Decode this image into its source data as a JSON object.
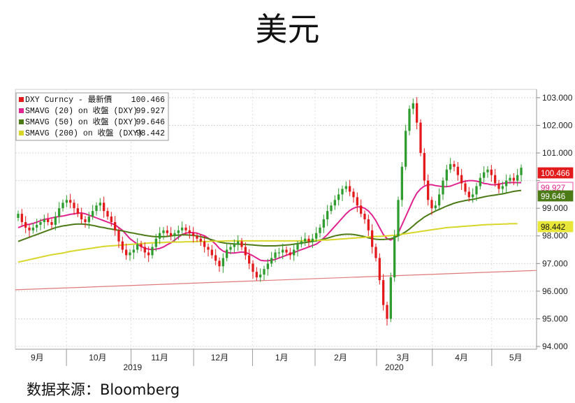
{
  "page": {
    "title": "美元",
    "source": "数据来源：Bloomberg"
  },
  "chart_data": {
    "type": "line",
    "title": "美元",
    "x_axis": {
      "month_labels": [
        "9月",
        "10月",
        "11月",
        "12月",
        "1月",
        "2月",
        "3月",
        "4月",
        "5月"
      ],
      "year_labels": [
        "2019",
        "2020"
      ]
    },
    "y_axis": {
      "side": "right",
      "ylim": [
        93.9,
        103.3
      ],
      "ticks": [
        94.0,
        95.0,
        96.0,
        97.0,
        98.0,
        99.0,
        100.0,
        101.0,
        102.0,
        103.0
      ],
      "tick_labels": [
        "94.000",
        "95.000",
        "96.000",
        "97.000",
        "98.000",
        "99.000",
        "101.000",
        "102.000",
        "103.000"
      ]
    },
    "grid": true,
    "legend_position": "top-left",
    "legend": [
      {
        "label": "DXY Curncy - 最新價",
        "value": "100.466",
        "color": "#e31a1c"
      },
      {
        "label": "SMAVG (20)  on 收盤 (DXY)",
        "value": "99.927",
        "color": "#e0238f"
      },
      {
        "label": "SMAVG (50)  on 收盤 (DXY)",
        "value": "99.646",
        "color": "#4c7a16"
      },
      {
        "label": "SMAVG (200)  on 收盤 (DXY)",
        "value": "98.442",
        "color": "#d9d62a"
      }
    ],
    "last_value_tags": [
      {
        "text": "100.466",
        "value": 100.466,
        "bg": "#e31a1c",
        "fg": "#ffffff"
      },
      {
        "text": "99.927",
        "value": 99.927,
        "bg": "#ffffff",
        "fg": "#e0238f"
      },
      {
        "text": "99.646",
        "value": 99.646,
        "bg": "#4c7a16",
        "fg": "#ffffff"
      },
      {
        "text": "98.442",
        "value": 98.442,
        "bg": "#e9e63a",
        "fg": "#111111"
      }
    ],
    "candles": {
      "up_color": "#2e9c2e",
      "down_color": "#e31a1c",
      "closes": [
        98.8,
        98.5,
        98.3,
        98.2,
        98.3,
        98.4,
        98.5,
        98.6,
        98.5,
        98.4,
        98.7,
        99.0,
        99.2,
        99.3,
        99.2,
        99.0,
        98.8,
        98.6,
        98.5,
        98.7,
        98.9,
        99.1,
        99.2,
        98.9,
        98.7,
        98.5,
        98.2,
        97.8,
        97.5,
        97.3,
        97.4,
        97.5,
        97.7,
        97.6,
        97.4,
        97.3,
        97.6,
        97.9,
        98.1,
        98.2,
        98.1,
        98.0,
        98.1,
        98.2,
        98.3,
        98.2,
        98.1,
        98.0,
        97.9,
        97.8,
        97.6,
        97.5,
        97.3,
        97.1,
        96.9,
        97.2,
        97.5,
        97.6,
        97.7,
        97.8,
        97.6,
        97.3,
        97.0,
        96.7,
        96.5,
        96.6,
        96.8,
        97.0,
        97.2,
        97.4,
        97.4,
        97.5,
        97.4,
        97.3,
        97.5,
        97.7,
        97.8,
        97.9,
        97.8,
        97.9,
        98.1,
        98.3,
        98.6,
        98.9,
        99.1,
        99.3,
        99.5,
        99.7,
        99.8,
        99.6,
        99.4,
        99.1,
        98.8,
        98.6,
        98.2,
        97.6,
        97.2,
        96.4,
        95.5,
        95.0,
        96.5,
        98.0,
        99.3,
        100.5,
        101.8,
        102.6,
        102.8,
        102.1,
        101.0,
        100.0,
        99.3,
        99.0,
        99.1,
        99.5,
        100.0,
        100.4,
        100.6,
        100.5,
        100.2,
        99.9,
        99.6,
        99.4,
        99.5,
        99.8,
        100.1,
        100.3,
        100.4,
        100.2,
        99.9,
        99.7,
        99.8,
        100.0,
        100.1,
        100.0,
        100.2,
        100.466
      ]
    },
    "series": [
      {
        "name": "SMAVG (20)  on 收盤 (DXY)",
        "color": "#e0238f",
        "values": [
          98.3,
          98.35,
          98.4,
          98.42,
          98.45,
          98.5,
          98.55,
          98.6,
          98.62,
          98.65,
          98.68,
          98.7,
          98.72,
          98.75,
          98.78,
          98.8,
          98.82,
          98.83,
          98.8,
          98.75,
          98.7,
          98.65,
          98.6,
          98.55,
          98.5,
          98.45,
          98.4,
          98.3,
          98.2,
          98.05,
          97.9,
          97.8,
          97.7,
          97.62,
          97.55,
          97.52,
          97.5,
          97.52,
          97.55,
          97.6,
          97.68,
          97.75,
          97.85,
          97.95,
          98.05,
          98.1,
          98.12,
          98.12,
          98.1,
          98.05,
          98.0,
          97.92,
          97.82,
          97.7,
          97.55,
          97.45,
          97.4,
          97.38,
          97.38,
          97.4,
          97.42,
          97.4,
          97.35,
          97.28,
          97.2,
          97.12,
          97.1,
          97.1,
          97.12,
          97.15,
          97.2,
          97.25,
          97.3,
          97.35,
          97.4,
          97.45,
          97.5,
          97.55,
          97.6,
          97.65,
          97.7,
          97.8,
          97.92,
          98.05,
          98.2,
          98.35,
          98.5,
          98.65,
          98.8,
          98.92,
          99.0,
          99.05,
          99.05,
          99.0,
          98.9,
          98.75,
          98.55,
          98.3,
          98.05,
          97.9,
          97.85,
          97.92,
          98.1,
          98.4,
          98.7,
          99.0,
          99.3,
          99.55,
          99.7,
          99.8,
          99.85,
          99.85,
          99.82,
          99.8,
          99.78,
          99.78,
          99.8,
          99.85,
          99.9,
          99.95,
          99.98,
          100.0,
          100.0,
          99.98,
          99.95,
          99.9,
          99.88,
          99.85,
          99.85,
          99.87,
          99.9,
          99.92,
          99.93,
          99.93,
          99.927,
          99.927
        ]
      },
      {
        "name": "SMAVG (50)  on 收盤 (DXY)",
        "color": "#4c7a16",
        "values": [
          97.8,
          97.85,
          97.9,
          97.95,
          98.0,
          98.05,
          98.1,
          98.15,
          98.2,
          98.25,
          98.3,
          98.33,
          98.36,
          98.38,
          98.4,
          98.42,
          98.43,
          98.43,
          98.42,
          98.4,
          98.38,
          98.35,
          98.32,
          98.3,
          98.27,
          98.25,
          98.22,
          98.2,
          98.18,
          98.15,
          98.12,
          98.1,
          98.07,
          98.05,
          98.02,
          98.0,
          97.98,
          97.97,
          97.97,
          97.97,
          97.98,
          98.0,
          98.02,
          98.03,
          98.04,
          98.04,
          98.03,
          98.02,
          98.0,
          97.97,
          97.94,
          97.9,
          97.86,
          97.82,
          97.78,
          97.75,
          97.73,
          97.72,
          97.71,
          97.7,
          97.7,
          97.69,
          97.68,
          97.67,
          97.66,
          97.65,
          97.64,
          97.64,
          97.64,
          97.64,
          97.65,
          97.66,
          97.67,
          97.68,
          97.7,
          97.72,
          97.74,
          97.76,
          97.78,
          97.8,
          97.82,
          97.85,
          97.88,
          97.92,
          97.96,
          98.0,
          98.03,
          98.05,
          98.06,
          98.06,
          98.05,
          98.03,
          98.0,
          97.97,
          97.93,
          97.9,
          97.88,
          97.87,
          97.87,
          97.88,
          97.9,
          97.94,
          98.0,
          98.07,
          98.15,
          98.25,
          98.36,
          98.48,
          98.58,
          98.68,
          98.76,
          98.83,
          98.9,
          98.96,
          99.02,
          99.08,
          99.13,
          99.18,
          99.22,
          99.25,
          99.28,
          99.3,
          99.32,
          99.35,
          99.38,
          99.41,
          99.44,
          99.46,
          99.48,
          99.5,
          99.52,
          99.55,
          99.58,
          99.61,
          99.63,
          99.646
        ]
      },
      {
        "name": "SMAVG (200)  on 收盤 (DXY)",
        "color": "#d9d62a",
        "values": [
          97.05,
          97.08,
          97.11,
          97.14,
          97.17,
          97.2,
          97.23,
          97.26,
          97.29,
          97.32,
          97.34,
          97.36,
          97.38,
          97.41,
          97.44,
          97.46,
          97.48,
          97.5,
          97.52,
          97.54,
          97.56,
          97.58,
          97.6,
          97.62,
          97.63,
          97.64,
          97.65,
          97.66,
          97.67,
          97.68,
          97.69,
          97.7,
          97.71,
          97.72,
          97.73,
          97.74,
          97.75,
          97.75,
          97.76,
          97.76,
          97.77,
          97.77,
          97.78,
          97.78,
          97.78,
          97.79,
          97.79,
          97.79,
          97.8,
          97.8,
          97.8,
          97.8,
          97.81,
          97.81,
          97.81,
          97.81,
          97.82,
          97.82,
          97.82,
          97.82,
          97.82,
          97.82,
          97.82,
          97.82,
          97.82,
          97.82,
          97.82,
          97.82,
          97.82,
          97.82,
          97.82,
          97.82,
          97.82,
          97.82,
          97.82,
          97.82,
          97.82,
          97.83,
          97.83,
          97.83,
          97.84,
          97.84,
          97.85,
          97.85,
          97.86,
          97.87,
          97.88,
          97.89,
          97.9,
          97.91,
          97.92,
          97.93,
          97.94,
          97.95,
          97.96,
          97.97,
          97.98,
          97.98,
          97.99,
          98.0,
          98.01,
          98.02,
          98.04,
          98.06,
          98.08,
          98.1,
          98.12,
          98.14,
          98.16,
          98.18,
          98.2,
          98.22,
          98.24,
          98.26,
          98.28,
          98.3,
          98.31,
          98.32,
          98.33,
          98.34,
          98.35,
          98.36,
          98.37,
          98.38,
          98.39,
          98.4,
          98.41,
          98.41,
          98.42,
          98.42,
          98.43,
          98.43,
          98.44,
          98.442,
          98.442
        ]
      },
      {
        "name": "",
        "color": "#e07a7a",
        "values_endpoints": [
          96.05,
          96.75
        ]
      }
    ]
  }
}
